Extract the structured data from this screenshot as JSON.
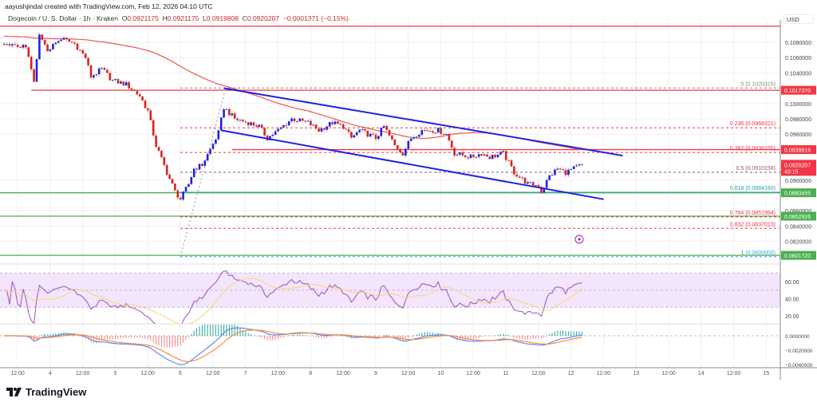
{
  "header": {
    "attribution": "aayushjindal created with TradingView.com, Feb 12, 2026 04:10 UTC"
  },
  "legend": {
    "symbol": "Dogecoin / U. S. Dollar · 1h · Kraken",
    "o_label": "O",
    "o": "0.0921175",
    "h_label": "H",
    "h": "0.0921175",
    "l_label": "L",
    "l": "0.0919808",
    "c_label": "C",
    "c": "0.0920207",
    "change": "−0.0001371 (−0.15%)"
  },
  "price_axis": {
    "currency": "USD",
    "ticks": [
      "0.1080000",
      "0.1060000",
      "0.1040000",
      "0.1000000",
      "0.0980000",
      "0.0960000",
      "0.0900000",
      "0.0860000",
      "0.0840000",
      "0.0820000"
    ],
    "tick_values": [
      0.108,
      0.106,
      0.104,
      0.1,
      0.098,
      0.096,
      0.09,
      0.086,
      0.084,
      0.082
    ]
  },
  "price_labels": [
    {
      "text": "0.1017370",
      "value": 0.101737,
      "color": "#f23645",
      "line": "solid",
      "from": "Feb 3 17:00"
    },
    {
      "text": "0.0939816",
      "value": 0.0939816,
      "color": "#f23645",
      "line": "solid",
      "from": "Feb 6 19:00"
    },
    {
      "text": "0.0883455",
      "value": 0.0883455,
      "color": "#4caf50",
      "line": "solid",
      "from": "start"
    },
    {
      "text": "0.0852926",
      "value": 0.0852926,
      "color": "#4caf50",
      "line": "solid",
      "from": "start"
    },
    {
      "text": "0.0801720",
      "value": 0.080172,
      "color": "#4caf50",
      "line": "solid",
      "from": "start"
    }
  ],
  "top_line": {
    "value": 0.1101,
    "color": "#f23645"
  },
  "current_price": {
    "text": "0.0920207",
    "value": 0.0920207,
    "countdown": "49:15",
    "color": "#f23645"
  },
  "fibonacci": [
    {
      "label": "0 (0.1020315)",
      "value": 0.1020315,
      "color": "#888888"
    },
    {
      "label": "0.236 (0.0968321)",
      "value": 0.0968321,
      "color": "#f23645"
    },
    {
      "label": "0.382 (0.0936155)",
      "value": 0.0936155,
      "color": "#f23645"
    },
    {
      "label": "0.5 (0.0910158)",
      "value": 0.0910158,
      "color": "#8d5a6b"
    },
    {
      "label": "0.618 (0.0884160)",
      "value": 0.088416,
      "color": "#26a69a"
    },
    {
      "label": "0.764 (0.0851994)",
      "value": 0.0851994,
      "color": "#f23645"
    },
    {
      "label": "0.832 (0.0837013)",
      "value": 0.0837013,
      "color": "#f23645"
    },
    {
      "label": "1 (0.0800000)",
      "value": 0.08,
      "color": "#42a5f5"
    }
  ],
  "channel": {
    "color": "#1e22e0",
    "upper": [
      [
        "Feb 6 16:00",
        0.102
      ],
      [
        "Feb 12 19:00",
        0.0932
      ]
    ],
    "lower": [
      [
        "Feb 6 15:00",
        0.0965
      ],
      [
        "Feb 12 12:00",
        0.0875
      ]
    ]
  },
  "rsi_axis": {
    "ticks": [
      "60.00",
      "40.00",
      "20.00"
    ],
    "tick_values": [
      60,
      40,
      20
    ],
    "band": [
      30,
      70
    ]
  },
  "macd_axis": {
    "ticks": [
      "0.0000000",
      "−0.0020000",
      "−0.0040000"
    ],
    "tick_values": [
      0,
      -0.002,
      -0.004
    ]
  },
  "time_axis": {
    "labels": [
      "12:00",
      "4",
      "12:00",
      "5",
      "12:00",
      "6",
      "12:00",
      "7",
      "12:00",
      "8",
      "12:00",
      "9",
      "12:00",
      "10",
      "12:00",
      "11",
      "12:00",
      "12",
      "12:00",
      "13",
      "12:00",
      "14",
      "12:00",
      "15"
    ]
  },
  "colors": {
    "up": "#1e22e0",
    "down": "#e01e1e",
    "ma": "#f05454",
    "rsi": "#9c4fc4",
    "rsi_ma": "#f7d774",
    "macd": "#5b8cf5",
    "signal": "#ff8a3d",
    "hist_up": "#26a69a",
    "hist_down": "#f77c80"
  },
  "logo": {
    "text": "TradingView"
  },
  "chart_data": {
    "type": "candlestick",
    "interval": "1h",
    "ylim": [
      0.0797,
      0.1104
    ],
    "grid": true,
    "closes": [
      [
        "Feb 3 07:00",
        0.1076
      ],
      [
        "Feb 3 15:00",
        0.1075
      ],
      [
        "Feb 3 18:00",
        0.1026
      ],
      [
        "Feb 3 20:00",
        0.1088
      ],
      [
        "Feb 3 23:00",
        0.107
      ],
      [
        "Feb 4 04:00",
        0.1085
      ],
      [
        "Feb 4 09:00",
        0.1078
      ],
      [
        "Feb 4 13:00",
        0.106
      ],
      [
        "Feb 4 15:00",
        0.1035
      ],
      [
        "Feb 4 19:00",
        0.1045
      ],
      [
        "Feb 4 23:00",
        0.103
      ],
      [
        "Feb 5 04:00",
        0.1025
      ],
      [
        "Feb 5 09:00",
        0.101
      ],
      [
        "Feb 5 12:00",
        0.099
      ],
      [
        "Feb 5 15:00",
        0.0945
      ],
      [
        "Feb 5 19:00",
        0.091
      ],
      [
        "Feb 5 22:00",
        0.0885
      ],
      [
        "Feb 6 00:00",
        0.0875
      ],
      [
        "Feb 6 03:00",
        0.0895
      ],
      [
        "Feb 6 05:00",
        0.0915
      ],
      [
        "Feb 6 08:00",
        0.092
      ],
      [
        "Feb 6 11:00",
        0.094
      ],
      [
        "Feb 6 14:00",
        0.0962
      ],
      [
        "Feb 6 16:00",
        0.0995
      ],
      [
        "Feb 6 20:00",
        0.098
      ],
      [
        "Feb 7 01:00",
        0.0975
      ],
      [
        "Feb 7 05:00",
        0.097
      ],
      [
        "Feb 7 08:00",
        0.0955
      ],
      [
        "Feb 7 12:00",
        0.0965
      ],
      [
        "Feb 7 17:00",
        0.098
      ],
      [
        "Feb 7 23:00",
        0.0975
      ],
      [
        "Feb 8 03:00",
        0.0965
      ],
      [
        "Feb 8 08:00",
        0.0975
      ],
      [
        "Feb 8 12:00",
        0.097
      ],
      [
        "Feb 8 15:00",
        0.0955
      ],
      [
        "Feb 8 18:00",
        0.0965
      ],
      [
        "Feb 9 00:00",
        0.0955
      ],
      [
        "Feb 9 03:00",
        0.097
      ],
      [
        "Feb 9 07:00",
        0.0945
      ],
      [
        "Feb 9 10:00",
        0.0935
      ],
      [
        "Feb 9 13:00",
        0.0955
      ],
      [
        "Feb 9 17:00",
        0.0965
      ],
      [
        "Feb 9 23:00",
        0.0965
      ],
      [
        "Feb 10 02:00",
        0.096
      ],
      [
        "Feb 10 05:00",
        0.0935
      ],
      [
        "Feb 10 11:00",
        0.093
      ],
      [
        "Feb 10 15:00",
        0.0935
      ],
      [
        "Feb 10 18:00",
        0.093
      ],
      [
        "Feb 10 23:00",
        0.0935
      ],
      [
        "Feb 11 03:00",
        0.091
      ],
      [
        "Feb 11 08:00",
        0.0895
      ],
      [
        "Feb 11 12:00",
        0.0893
      ],
      [
        "Feb 11 13:00",
        0.0885
      ],
      [
        "Feb 11 16:00",
        0.0905
      ],
      [
        "Feb 11 19:00",
        0.0915
      ],
      [
        "Feb 11 22:00",
        0.091
      ],
      [
        "Feb 12 04:00",
        0.0920207
      ]
    ]
  }
}
